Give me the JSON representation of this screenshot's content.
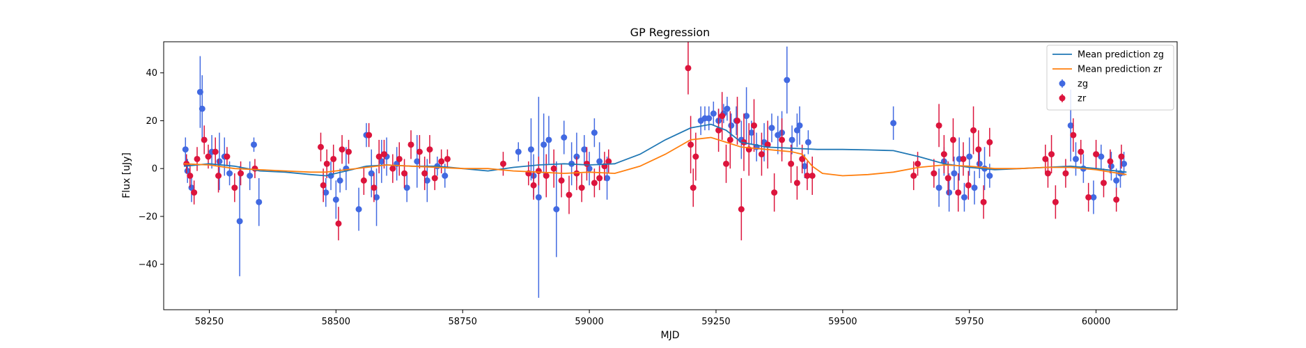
{
  "chart_data": {
    "type": "scatter",
    "title": "GP Regression",
    "xlabel": "MJD",
    "ylabel": "Flux [uJy]",
    "xlim": [
      58160,
      60160
    ],
    "ylim": [
      -59,
      53
    ],
    "xticks": [
      58250,
      58500,
      58750,
      59000,
      59250,
      59500,
      59750,
      60000
    ],
    "yticks": [
      -40,
      -20,
      0,
      20,
      40
    ],
    "grid": false,
    "legend_position": "top-right",
    "legend": [
      "Mean prediction zg",
      "Mean prediction zr",
      "zg",
      "zr"
    ],
    "colors": {
      "mean_zg": "#1f77b4",
      "mean_zr": "#ff7f0e",
      "zg": "#4169e1",
      "zr": "#dc143c"
    },
    "lines": [
      {
        "name": "Mean prediction zg",
        "x": [
          58200,
          58250,
          58300,
          58350,
          58400,
          58450,
          58480,
          58520,
          58560,
          58600,
          58650,
          58700,
          58750,
          58800,
          58850,
          58900,
          58950,
          59000,
          59050,
          59100,
          59150,
          59200,
          59240,
          59270,
          59300,
          59350,
          59400,
          59450,
          59500,
          59550,
          59600,
          59650,
          59700,
          59750,
          59800,
          59850,
          59900,
          59950,
          60000,
          60060
        ],
        "y": [
          1,
          2,
          1,
          -1,
          -1.5,
          -2.5,
          -3,
          -1,
          1,
          1.5,
          1,
          1,
          0,
          -1,
          0.5,
          1.5,
          2,
          1.5,
          2,
          6,
          12,
          17,
          18.5,
          16,
          11,
          9,
          8.5,
          8,
          8,
          7.8,
          7.5,
          5,
          2,
          0.5,
          -0.5,
          0,
          0.5,
          1,
          0,
          -1.5
        ]
      },
      {
        "name": "Mean prediction zr",
        "x": [
          58200,
          58250,
          58300,
          58350,
          58400,
          58450,
          58480,
          58520,
          58560,
          58600,
          58650,
          58700,
          58750,
          58800,
          58850,
          58900,
          58950,
          59000,
          59050,
          59100,
          59150,
          59200,
          59240,
          59270,
          59300,
          59350,
          59400,
          59420,
          59440,
          59460,
          59500,
          59550,
          59600,
          59650,
          59700,
          59750,
          59800,
          59850,
          59900,
          59950,
          60000,
          60060
        ],
        "y": [
          2,
          1.5,
          0,
          -0.5,
          -1,
          -1.5,
          -1.5,
          -0.5,
          0.5,
          1.5,
          1,
          0.5,
          0,
          0,
          -1,
          -1.5,
          -2,
          -1.5,
          -2,
          1,
          6,
          12,
          13,
          11,
          9,
          8,
          7,
          6,
          1,
          -2,
          -3,
          -2.5,
          -1.5,
          0.5,
          1.5,
          1,
          0,
          0,
          0.5,
          0.5,
          -0.5,
          -2.5
        ]
      }
    ],
    "series": [
      {
        "name": "zg",
        "x": [
          58203,
          58207,
          58215,
          58232,
          58236,
          58255,
          58270,
          58280,
          58290,
          58310,
          58330,
          58338,
          58348,
          58480,
          58490,
          58500,
          58508,
          58520,
          58545,
          58560,
          58570,
          58580,
          58590,
          58600,
          58620,
          58640,
          58660,
          58680,
          58700,
          58715,
          58860,
          58885,
          58890,
          58900,
          58910,
          58920,
          58935,
          58950,
          58965,
          58975,
          58990,
          59000,
          59010,
          59020,
          59035,
          59220,
          59228,
          59236,
          59245,
          59255,
          59265,
          59272,
          59280,
          59290,
          59300,
          59310,
          59320,
          59330,
          59345,
          59360,
          59372,
          59380,
          59390,
          59400,
          59410,
          59415,
          59425,
          59432,
          59600,
          59690,
          59700,
          59710,
          59720,
          59730,
          59740,
          59750,
          59760,
          59770,
          59780,
          59790,
          59950,
          59960,
          59975,
          59995,
          60010,
          60030,
          60040,
          60048,
          60055
        ],
        "y": [
          8,
          -1,
          -8,
          32,
          25,
          7,
          3,
          5,
          -2,
          -22,
          -3,
          10,
          -14,
          -10,
          -3,
          -13,
          -5,
          0,
          -17,
          14,
          -2,
          -12,
          3,
          5,
          2,
          -8,
          3,
          -5,
          1,
          -3,
          7,
          8,
          -3,
          -12,
          10,
          12,
          -17,
          13,
          2,
          5,
          8,
          0,
          15,
          3,
          -4,
          20,
          21,
          21,
          23,
          20,
          23,
          25,
          18,
          20,
          12,
          22,
          15,
          9,
          11,
          17,
          14,
          15,
          37,
          12,
          16,
          18,
          1,
          11,
          19,
          -8,
          3,
          -10,
          -2,
          4,
          -12,
          5,
          -8,
          2,
          0,
          -3,
          18,
          4,
          0,
          -12,
          5,
          1,
          -5,
          -2,
          2
        ],
        "err": [
          5,
          5,
          6,
          15,
          14,
          7,
          12,
          8,
          5,
          23,
          6,
          3,
          10,
          6,
          6,
          8,
          5,
          9,
          9,
          5,
          10,
          12,
          9,
          8,
          7,
          6,
          11,
          9,
          4,
          5,
          4,
          13,
          9,
          42,
          13,
          10,
          20,
          7,
          9,
          10,
          6,
          7,
          6,
          8,
          9,
          6,
          5,
          5,
          5,
          5,
          4,
          5,
          5,
          6,
          8,
          12,
          5,
          6,
          8,
          6,
          8,
          9,
          14,
          6,
          7,
          8,
          5,
          5,
          7,
          8,
          6,
          8,
          7,
          9,
          6,
          8,
          7,
          6,
          9,
          5,
          15,
          7,
          6,
          7,
          5,
          6,
          5,
          6,
          5
        ]
      },
      {
        "name": "zr",
        "x": [
          58205,
          58212,
          58220,
          58226,
          58240,
          58248,
          58262,
          58268,
          58285,
          58300,
          58312,
          58340,
          58470,
          58475,
          58482,
          58495,
          58505,
          58512,
          58525,
          58555,
          58565,
          58575,
          58585,
          58595,
          58612,
          58625,
          58635,
          58648,
          58665,
          58675,
          58685,
          58695,
          58708,
          58720,
          58830,
          58880,
          58890,
          58900,
          58915,
          58930,
          58945,
          58960,
          58975,
          58985,
          58995,
          59010,
          59020,
          59030,
          59038,
          59195,
          59200,
          59205,
          59210,
          59255,
          59262,
          59270,
          59278,
          59292,
          59300,
          59305,
          59315,
          59325,
          59340,
          59352,
          59365,
          59380,
          59398,
          59410,
          59420,
          59430,
          59440,
          59640,
          59648,
          59680,
          59690,
          59700,
          59708,
          59718,
          59728,
          59738,
          59748,
          59758,
          59768,
          59778,
          59790,
          59900,
          59905,
          59912,
          59920,
          59940,
          59955,
          59970,
          59985,
          60000,
          60015,
          60028,
          60040,
          60050
        ],
        "y": [
          2,
          -3,
          -10,
          4,
          12,
          5,
          7,
          -3,
          5,
          -8,
          -2,
          0,
          9,
          -7,
          2,
          4,
          -23,
          8,
          7,
          -5,
          14,
          -8,
          5,
          6,
          0,
          4,
          -2,
          10,
          7,
          -2,
          8,
          -4,
          3,
          4,
          2,
          -2,
          -7,
          -1,
          -3,
          0,
          -5,
          -11,
          -2,
          -8,
          2,
          -6,
          -4,
          1,
          3,
          42,
          10,
          -8,
          5,
          16,
          22,
          2,
          12,
          20,
          -17,
          11,
          8,
          18,
          6,
          10,
          -10,
          12,
          2,
          -6,
          4,
          -3,
          -3,
          -3,
          2,
          -2,
          18,
          6,
          -4,
          12,
          -10,
          4,
          -7,
          16,
          8,
          -14,
          11,
          4,
          -2,
          6,
          -14,
          -2,
          14,
          7,
          -12,
          6,
          -6,
          3,
          -13,
          5
        ],
        "err": [
          4,
          5,
          5,
          5,
          6,
          5,
          6,
          7,
          4,
          6,
          5,
          4,
          6,
          7,
          6,
          6,
          7,
          6,
          5,
          6,
          5,
          6,
          7,
          6,
          6,
          7,
          6,
          6,
          7,
          7,
          6,
          5,
          5,
          4,
          5,
          5,
          6,
          6,
          9,
          8,
          7,
          8,
          7,
          6,
          7,
          6,
          5,
          6,
          5,
          11,
          12,
          8,
          10,
          9,
          10,
          8,
          12,
          10,
          13,
          12,
          11,
          11,
          9,
          10,
          8,
          9,
          8,
          7,
          6,
          6,
          8,
          6,
          5,
          6,
          9,
          8,
          7,
          9,
          8,
          7,
          6,
          10,
          8,
          7,
          6,
          6,
          6,
          8,
          7,
          6,
          7,
          5,
          6,
          6,
          6,
          5,
          5,
          5
        ]
      }
    ]
  }
}
